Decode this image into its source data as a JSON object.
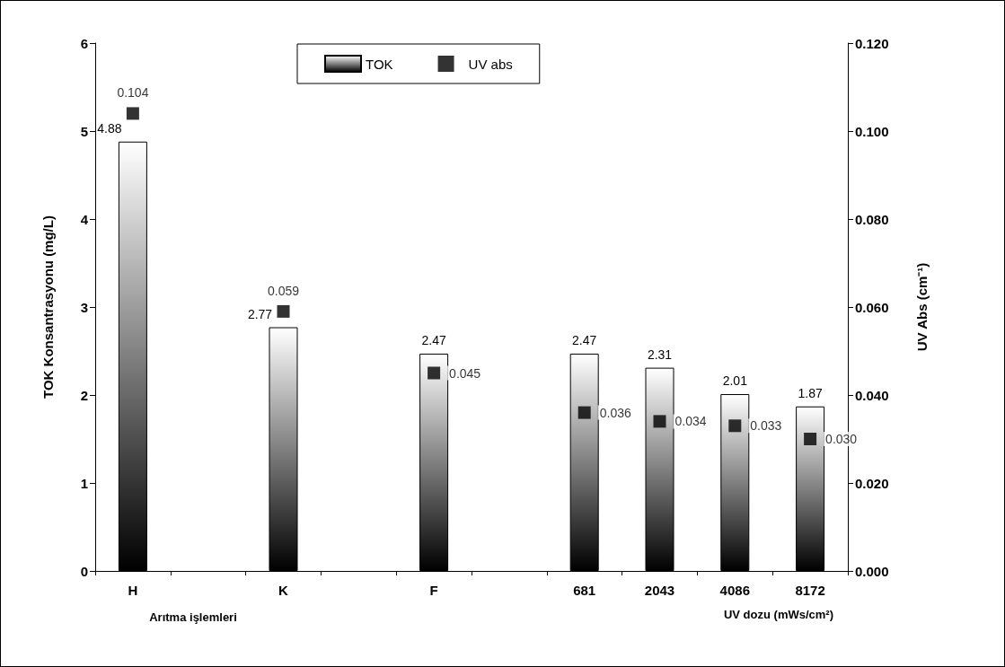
{
  "chart_data": {
    "type": "bar",
    "categories": [
      "H",
      null,
      "K",
      null,
      "F",
      null,
      "681",
      "2043",
      "4086",
      "8172"
    ],
    "xlabel": "Arıtma işlemleri",
    "ylabel": "TOK Konsantrasyonu (mg/L)",
    "y2label": "UV Abs (cm⁻¹)",
    "annotations": [
      "UV dozu (mWs/cm²)"
    ],
    "series": [
      {
        "name": "TOK",
        "color": "#000000",
        "values": [
          4.88,
          null,
          2.77,
          null,
          2.47,
          null,
          2.47,
          2.31,
          2.01,
          1.87
        ],
        "data_labels": true
      },
      {
        "name": "UV abs",
        "type": "scatter",
        "axis": "y2",
        "color": "#000000",
        "marker": "square",
        "values": [
          0.104,
          null,
          0.059,
          null,
          0.045,
          null,
          0.036,
          0.034,
          0.033,
          0.03
        ],
        "value_labels": [
          "0.104",
          null,
          "0.059",
          null,
          "0.045",
          null,
          "0.036",
          "0.034",
          "0.033",
          "0.030"
        ]
      }
    ],
    "ylim": [
      0,
      6
    ],
    "yticks": [
      0,
      1,
      2,
      3,
      4,
      5,
      6
    ],
    "y2lim": [
      0,
      0.12
    ],
    "y2ticks": [
      {
        "value": 0,
        "label": "0.000"
      },
      {
        "value": 0.02,
        "label": "0.020"
      },
      {
        "value": 0.04,
        "label": "0.040"
      },
      {
        "value": 0.06,
        "label": "0.060"
      },
      {
        "value": 0.08,
        "label": "0.080"
      },
      {
        "value": 0.1,
        "label": "0.100"
      },
      {
        "value": 0.12,
        "label": "0.120"
      }
    ],
    "grid": false,
    "legend": "top"
  }
}
